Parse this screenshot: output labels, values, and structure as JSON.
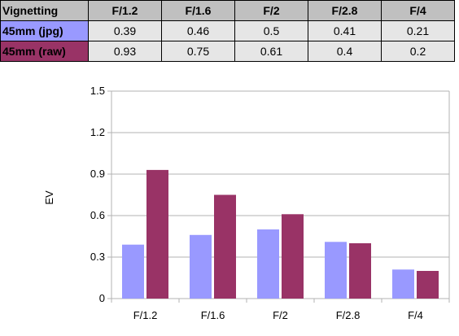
{
  "table": {
    "corner_label": "Vignetting",
    "columns": [
      "F/1.2",
      "F/1.6",
      "F/2",
      "F/2.8",
      "F/4"
    ],
    "rows": [
      {
        "label": "45mm (jpg)",
        "color": "#9999ff",
        "values": [
          "0.39",
          "0.46",
          "0.5",
          "0.41",
          "0.21"
        ]
      },
      {
        "label": "45mm (raw)",
        "color": "#993366",
        "values": [
          "0.93",
          "0.75",
          "0.61",
          "0.4",
          "0.2"
        ]
      }
    ]
  },
  "chart_data": {
    "type": "bar",
    "categories": [
      "F/1.2",
      "F/1.6",
      "F/2",
      "F/2.8",
      "F/4"
    ],
    "series": [
      {
        "name": "45mm (jpg)",
        "color": "#9999ff",
        "values": [
          0.39,
          0.46,
          0.5,
          0.41,
          0.21
        ]
      },
      {
        "name": "45mm (raw)",
        "color": "#993366",
        "values": [
          0.93,
          0.75,
          0.61,
          0.4,
          0.2
        ]
      }
    ],
    "ylabel": "EV",
    "ylim": [
      0,
      1.5
    ],
    "yticks": [
      "0",
      "0.3",
      "0.6",
      "0.9",
      "1.2",
      "1.5"
    ],
    "grid": true,
    "legend": "none"
  }
}
